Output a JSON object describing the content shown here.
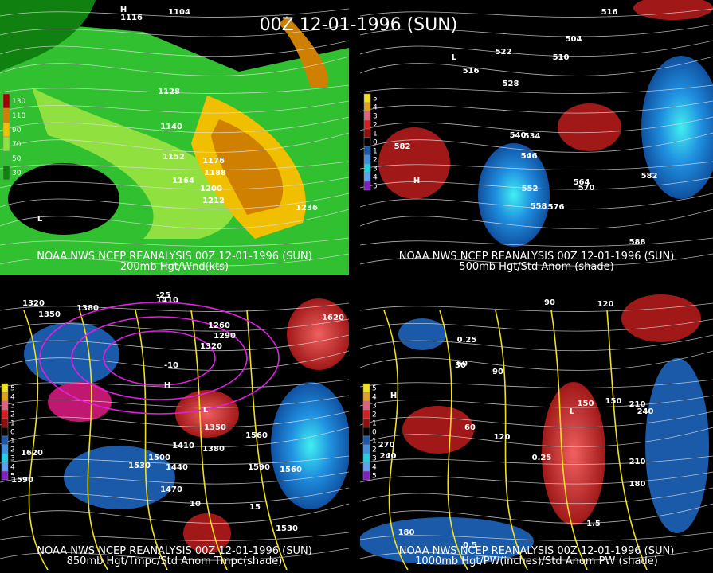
{
  "title": "00Z 12-01-1996 (SUN)",
  "panels": [
    {
      "caption": "NOAA NWS NCEP REANALYSIS 00Z 12-01-1996 (SUN)",
      "subcaption": "200mb Hgt/Wnd(kts)",
      "legend": [
        "130",
        "110",
        "90",
        "70",
        "50",
        "30"
      ],
      "labels": [
        "1116",
        "1104",
        "1128",
        "1140",
        "1152",
        "1164",
        "1176",
        "1188",
        "1200",
        "1212",
        "1236",
        "L",
        "H"
      ]
    },
    {
      "caption": "NOAA NWS NCEP REANALYSIS 00Z 12-01-1996 (SUN)",
      "subcaption": "500mb Hgt/Std Anom (shade)",
      "legend": [
        "5",
        "4",
        "3",
        "2",
        "1",
        "0",
        "1",
        "2",
        "3",
        "4",
        "5"
      ],
      "labels": [
        "516",
        "522",
        "510",
        "516",
        "528",
        "534",
        "540",
        "546",
        "552",
        "558",
        "564",
        "570",
        "576",
        "582",
        "582",
        "588",
        "504",
        "H",
        "L"
      ]
    },
    {
      "caption": "NOAA NWS NCEP REANALYSIS 00Z 12-01-1996 (SUN)",
      "subcaption": "850mb Hgt/Tmpc/Std Anom Tmpc(shade)",
      "legend": [
        "5",
        "4",
        "3",
        "2",
        "1",
        "0",
        "1",
        "2",
        "3",
        "4",
        "5"
      ],
      "labels": [
        "1320",
        "1350",
        "1380",
        "1410",
        "1260",
        "1290",
        "1320",
        "1350",
        "1380",
        "1410",
        "1440",
        "1470",
        "1500",
        "1530",
        "1560",
        "1590",
        "1620",
        "1620",
        "1590",
        "1560",
        "1530",
        "-25",
        "-10",
        "10",
        "15",
        "H",
        "L"
      ]
    },
    {
      "caption": "NOAA NWS NCEP REANALYSIS 00Z 12-01-1996 (SUN)",
      "subcaption": "1000mb Hgt/PW(inches)/Std Anom PW (shade)",
      "legend": [
        "5",
        "4",
        "3",
        "2",
        "1",
        "0",
        "1",
        "2",
        "3",
        "4",
        "5"
      ],
      "labels": [
        "120",
        "90",
        "60",
        "30",
        "60",
        "90",
        "120",
        "150",
        "180",
        "210",
        "240",
        "270",
        "240",
        "210",
        "180",
        "150",
        "0.25",
        "0.5",
        "1.5",
        "0.25",
        "H",
        "L"
      ]
    }
  ]
}
